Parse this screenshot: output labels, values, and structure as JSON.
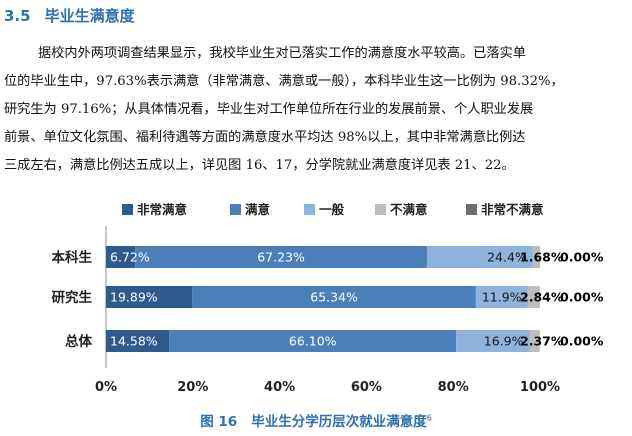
{
  "section": {
    "number": "3.5",
    "title": "毕业生满意度"
  },
  "paragraph": {
    "lines": [
      "据校内外两项调查结果显示，我校毕业生对已落实工作的满意度水平较高。已落实单",
      "位的毕业生中，97.63%表示满意（非常满意、满意或一般），本科毕业生这一比例为 98.32%，",
      "研究生为 97.16%；从具体情况看，毕业生对工作单位所在行业的发展前景、个人职业发展",
      "前景、单位文化氛围、福利待遇等方面的满意度水平均达  98%以上，其中非常满意比例达",
      "三成左右，满意比例达五成以上，详见图 16、17，分学院就业满意度详见表 21、22。"
    ]
  },
  "caption": {
    "figure": "图 16",
    "text": "毕业生分学历层次就业满意度",
    "footnote": "6"
  },
  "colors": {
    "very_satisfied": "#2f5b8c",
    "satisfied": "#4a7fb9",
    "average": "#8eb3dc",
    "dissatisfied": "#bdbdbd",
    "very_dissatisfied": "#6d6d6d",
    "title": "#2d6fb0"
  },
  "chart_data": {
    "type": "bar",
    "orientation": "horizontal",
    "stacked": true,
    "categories": [
      "本科生",
      "研究生",
      "总体"
    ],
    "series": [
      {
        "name": "非常满意",
        "values": [
          6.72,
          19.89,
          14.58
        ],
        "labels": [
          "6.72%",
          "19.89%",
          "14.58%"
        ]
      },
      {
        "name": "满意",
        "values": [
          67.23,
          65.34,
          66.1
        ],
        "labels": [
          "67.23%",
          "65.34%",
          "66.10%"
        ]
      },
      {
        "name": "一般",
        "values": [
          24.4,
          11.9,
          16.9
        ],
        "labels": [
          "24.4%",
          "11.9%",
          "16.9%"
        ]
      },
      {
        "name": "不满意",
        "values": [
          1.68,
          2.84,
          2.37
        ],
        "labels": [
          "1.68%",
          "2.84%",
          "2.37%"
        ]
      },
      {
        "name": "非常不满意",
        "values": [
          0.0,
          0.0,
          0.0
        ],
        "labels": [
          "0.00%",
          "0.00%",
          "0.00%"
        ]
      }
    ],
    "xlim": [
      0,
      100
    ],
    "xticks": [
      "0%",
      "20%",
      "40%",
      "60%",
      "80%",
      "100%"
    ],
    "legend_position": "top",
    "grid": false
  }
}
